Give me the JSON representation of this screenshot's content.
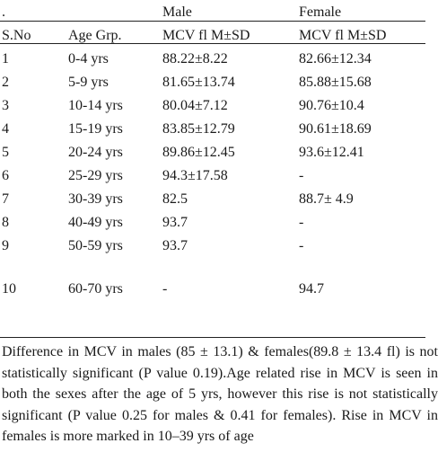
{
  "table": {
    "group_header": {
      "lead": ".",
      "male": "Male",
      "female": "Female"
    },
    "columns": [
      "S.No",
      "Age Grp.",
      "MCV fl M±SD",
      "MCV fl M±SD"
    ],
    "rows": [
      {
        "sno": "1",
        "age": "0-4 yrs",
        "male": "88.22±8.22",
        "female": "82.66±12.34"
      },
      {
        "sno": "2",
        "age": "5-9 yrs",
        "male": "81.65±13.74",
        "female": "85.88±15.68"
      },
      {
        "sno": "3",
        "age": "10-14 yrs",
        "male": "80.04±7.12",
        "female": "90.76±10.4"
      },
      {
        "sno": "4",
        "age": "15-19 yrs",
        "male": "83.85±12.79",
        "female": "90.61±18.69"
      },
      {
        "sno": "5",
        "age": "20-24 yrs",
        "male": "89.86±12.45",
        "female": "93.6±12.41"
      },
      {
        "sno": "6",
        "age": "25-29 yrs",
        "male": "94.3±17.58",
        "female": "-"
      },
      {
        "sno": "7",
        "age": "30-39 yrs",
        "male": "82.5",
        "female": "88.7± 4.9"
      },
      {
        "sno": "8",
        "age": "40-49 yrs",
        "male": "93.7",
        "female": "-"
      },
      {
        "sno": "9",
        "age": "50-59 yrs",
        "male": "93.7",
        "female": "-"
      },
      {
        "sno": "10",
        "age": "60-70 yrs",
        "male": "-",
        "female": "94.7"
      }
    ]
  },
  "footnote": "Difference in MCV in males (85 ± 13.1) & females(89.8 ± 13.4 fl) is not statistically significant (P value 0.19).Age related rise in MCV is seen in both the sexes after the age of 5 yrs, however this rise is not statistically significant (P value 0.25 for males & 0.41 for females). Rise in MCV in females is more marked in 10–39 yrs of age"
}
